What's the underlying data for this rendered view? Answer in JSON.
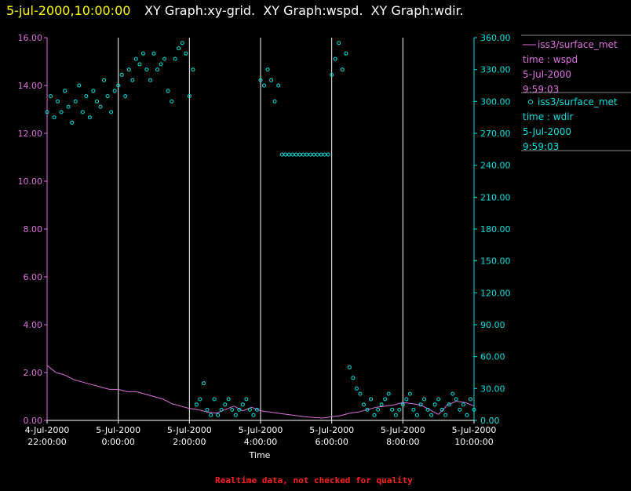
{
  "header": {
    "datetime": "5-jul-2000,10:00:00",
    "graphs": "XY Graph:xy-grid.  XY Graph:wspd.  XY Graph:wdir."
  },
  "footer": {
    "notice": "Realtime data, not checked for quality"
  },
  "legend": [
    {
      "lines": [
        "iss3/surface_met",
        "time : wspd",
        "5-Jul-2000",
        "9:59:03"
      ],
      "marker": "line",
      "color": "#e070e0"
    },
    {
      "lines": [
        "iss3/surface_met",
        "time : wdir",
        "5-Jul-2000",
        "9:59:03"
      ],
      "marker": "circle",
      "color": "#00e0e0"
    }
  ],
  "chart_data": {
    "type": "scatter",
    "xlabel": "Time",
    "x_range_hours": [
      22,
      34
    ],
    "x_ticks": [
      {
        "hour": 22,
        "line1": "4-Jul-2000",
        "line2": "22:00:00"
      },
      {
        "hour": 24,
        "line1": "5-Jul-2000",
        "line2": "0:00:00"
      },
      {
        "hour": 26,
        "line1": "5-Jul-2000",
        "line2": "2:00:00"
      },
      {
        "hour": 28,
        "line1": "5-Jul-2000",
        "line2": "4:00:00"
      },
      {
        "hour": 30,
        "line1": "5-Jul-2000",
        "line2": "6:00:00"
      },
      {
        "hour": 32,
        "line1": "5-Jul-2000",
        "line2": "8:00:00"
      },
      {
        "hour": 34,
        "line1": "5-Jul-2000",
        "line2": "10:00:00"
      }
    ],
    "y_left": {
      "range": [
        0,
        16
      ],
      "ticks": [
        "0.00",
        "2.00",
        "4.00",
        "6.00",
        "8.00",
        "10.00",
        "12.00",
        "14.00",
        "16.00"
      ],
      "color": "#e070e0"
    },
    "y_right": {
      "range": [
        0,
        360
      ],
      "ticks": [
        "0.00",
        "30.00",
        "60.00",
        "90.00",
        "120.00",
        "150.00",
        "180.00",
        "210.00",
        "240.00",
        "270.00",
        "300.00",
        "330.00",
        "360.00"
      ],
      "color": "#00e0e0"
    },
    "vertical_grid": true,
    "series": [
      {
        "name": "iss3/surface_met time : wspd",
        "axis": "left",
        "style": "line",
        "color": "#e070e0",
        "x": [
          22.0,
          22.25,
          22.5,
          22.75,
          23.0,
          23.25,
          23.5,
          23.75,
          24.0,
          24.25,
          24.5,
          24.75,
          25.0,
          25.25,
          25.5,
          25.75,
          26.0,
          26.25,
          26.5,
          26.75,
          27.0,
          27.25,
          27.5,
          27.75,
          28.0,
          28.25,
          28.5,
          28.75,
          29.0,
          29.25,
          29.5,
          29.75,
          30.0,
          30.25,
          30.5,
          30.75,
          31.0,
          31.25,
          31.5,
          31.75,
          32.0,
          32.25,
          32.5,
          32.75,
          33.0,
          33.25,
          33.5,
          33.75,
          34.0
        ],
        "values": [
          2.3,
          2.0,
          1.9,
          1.7,
          1.6,
          1.5,
          1.4,
          1.3,
          1.3,
          1.2,
          1.2,
          1.1,
          1.0,
          0.9,
          0.7,
          0.6,
          0.5,
          0.45,
          0.35,
          0.3,
          0.45,
          0.6,
          0.4,
          0.55,
          0.4,
          0.35,
          0.3,
          0.25,
          0.2,
          0.15,
          0.12,
          0.1,
          0.15,
          0.2,
          0.3,
          0.35,
          0.45,
          0.55,
          0.6,
          0.65,
          0.75,
          0.7,
          0.65,
          0.45,
          0.25,
          0.65,
          0.8,
          0.75,
          0.6
        ]
      },
      {
        "name": "iss3/surface_met time : wdir",
        "axis": "right",
        "style": "circle",
        "color": "#00e0e0",
        "x": [
          22.0,
          22.1,
          22.2,
          22.3,
          22.4,
          22.5,
          22.6,
          22.7,
          22.8,
          22.9,
          23.0,
          23.1,
          23.2,
          23.3,
          23.4,
          23.5,
          23.6,
          23.7,
          23.8,
          23.9,
          24.0,
          24.1,
          24.2,
          24.3,
          24.4,
          24.5,
          24.6,
          24.7,
          24.8,
          24.9,
          25.0,
          25.1,
          25.2,
          25.3,
          25.4,
          25.5,
          25.6,
          25.7,
          25.8,
          25.9,
          26.0,
          26.1,
          26.2,
          26.3,
          26.4,
          26.5,
          26.6,
          26.7,
          26.8,
          26.9,
          27.0,
          27.1,
          27.2,
          27.3,
          27.4,
          27.5,
          27.6,
          27.7,
          27.8,
          27.9,
          28.0,
          28.1,
          28.2,
          28.3,
          28.4,
          28.5,
          28.6,
          28.7,
          28.8,
          28.9,
          29.0,
          29.1,
          29.2,
          29.3,
          29.4,
          29.5,
          29.6,
          29.7,
          29.8,
          29.9,
          30.0,
          30.1,
          30.2,
          30.3,
          30.4,
          30.5,
          30.6,
          30.7,
          30.8,
          30.9,
          31.0,
          31.1,
          31.2,
          31.3,
          31.4,
          31.5,
          31.6,
          31.7,
          31.8,
          31.9,
          32.0,
          32.1,
          32.2,
          32.3,
          32.4,
          32.5,
          32.6,
          32.7,
          32.8,
          32.9,
          33.0,
          33.1,
          33.2,
          33.3,
          33.4,
          33.5,
          33.6,
          33.7,
          33.8,
          33.9,
          34.0
        ],
        "values": [
          290,
          305,
          285,
          300,
          290,
          310,
          295,
          280,
          300,
          315,
          290,
          305,
          285,
          310,
          300,
          295,
          320,
          305,
          290,
          310,
          315,
          325,
          305,
          330,
          320,
          340,
          335,
          345,
          330,
          320,
          345,
          330,
          335,
          340,
          310,
          300,
          340,
          350,
          355,
          345,
          305,
          330,
          15,
          20,
          35,
          10,
          5,
          20,
          5,
          10,
          15,
          20,
          10,
          5,
          10,
          15,
          20,
          10,
          5,
          10,
          320,
          315,
          330,
          320,
          300,
          315,
          250,
          250,
          250,
          250,
          250,
          250,
          250,
          250,
          250,
          250,
          250,
          250,
          250,
          250,
          325,
          340,
          355,
          330,
          345,
          50,
          40,
          30,
          25,
          15,
          10,
          20,
          5,
          10,
          15,
          20,
          25,
          10,
          5,
          10,
          15,
          20,
          25,
          10,
          5,
          15,
          20,
          10,
          5,
          15,
          20,
          10,
          5,
          15,
          25,
          20,
          10,
          15,
          5,
          20,
          10
        ]
      }
    ]
  }
}
